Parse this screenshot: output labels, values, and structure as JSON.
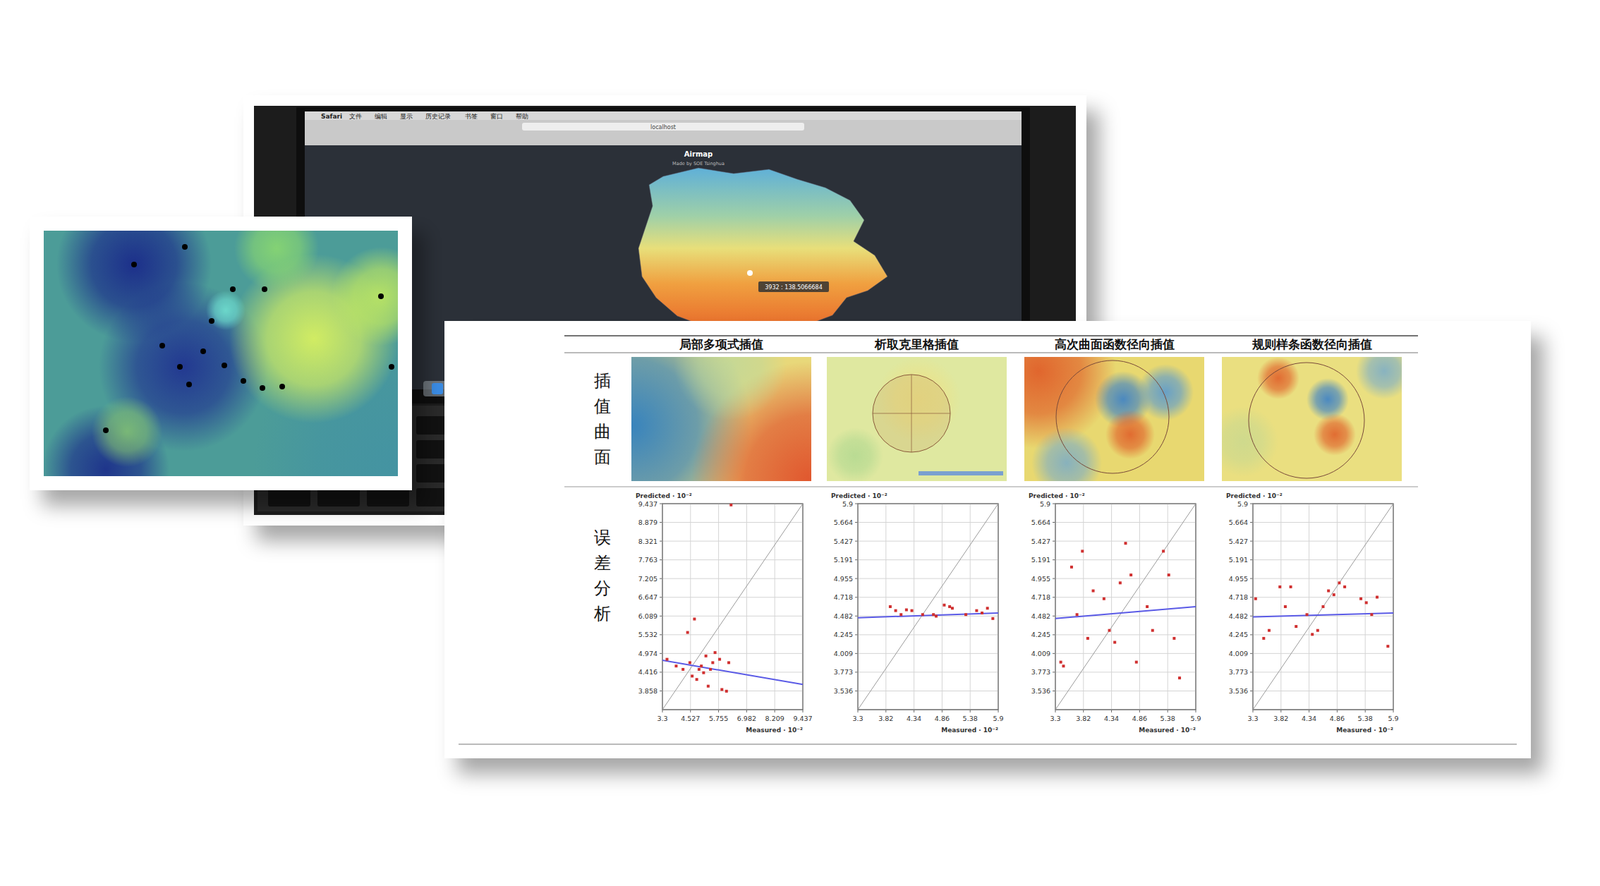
{
  "screenshot": {
    "menu": [
      "Safari",
      "文件",
      "编辑",
      "显示",
      "历史记录",
      "书签",
      "窗口",
      "帮助"
    ],
    "url": "localhost",
    "title": "Airmap",
    "subtitle": "Made by SOE Tsinghua",
    "tooltip": "3932 : 138.5066684"
  },
  "document": {
    "row_labels": [
      "插值曲面",
      "误差分析"
    ]
  },
  "chart_data": [
    {
      "type": "scatter",
      "title": "局部多项式插值",
      "x_label": "Measured · 10⁻²",
      "y_label": "Predicted · 10⁻²",
      "color": "#d03030",
      "marker": "square",
      "grid": true,
      "x": [
        3.5,
        3.9,
        4.2,
        4.5,
        4.6,
        4.8,
        4.9,
        5.0,
        5.1,
        5.2,
        5.3,
        5.4,
        5.5,
        5.6,
        5.8,
        6.2,
        5.9,
        6.1,
        4.7,
        4.4,
        6.3
      ],
      "values": [
        4.8,
        4.6,
        4.5,
        4.7,
        4.3,
        4.2,
        4.5,
        4.6,
        4.4,
        4.9,
        4.0,
        4.5,
        4.7,
        5.0,
        4.8,
        4.7,
        3.9,
        3.85,
        6.0,
        5.6,
        9.4
      ],
      "xlim": [
        3.3,
        9.437
      ],
      "ylim": [
        3.3,
        9.437
      ],
      "xticks": [
        3.3,
        4.527,
        5.755,
        6.982,
        8.209,
        9.437
      ],
      "yticks": [
        3.858,
        4.416,
        4.974,
        5.532,
        6.089,
        6.647,
        7.205,
        7.763,
        8.321,
        8.879,
        9.437
      ],
      "fit": {
        "x": [
          3.3,
          9.437
        ],
        "values": [
          4.77,
          4.05
        ],
        "color": "#5a5ae6"
      },
      "reference_line": {
        "x": [
          3.3,
          9.437
        ],
        "values": [
          3.3,
          9.437
        ],
        "color": "#9a9a9a"
      }
    },
    {
      "type": "scatter",
      "title": "析取克里格插值",
      "x_label": "Measured · 10⁻²",
      "y_label": "Predicted · 10⁻²",
      "color": "#d03030",
      "marker": "square",
      "grid": true,
      "x": [
        3.9,
        4.0,
        4.1,
        4.2,
        4.3,
        4.5,
        4.7,
        4.9,
        5.0,
        5.05,
        5.3,
        5.5,
        5.6,
        5.7,
        5.8,
        4.75
      ],
      "values": [
        4.6,
        4.55,
        4.5,
        4.56,
        4.55,
        4.5,
        4.5,
        4.62,
        4.6,
        4.58,
        4.5,
        4.55,
        4.52,
        4.58,
        4.45,
        4.48
      ],
      "xlim": [
        3.3,
        5.9
      ],
      "ylim": [
        3.3,
        5.9
      ],
      "xticks": [
        3.3,
        3.82,
        4.34,
        4.86,
        5.38,
        5.9
      ],
      "yticks": [
        3.536,
        3.773,
        4.009,
        4.245,
        4.482,
        4.718,
        4.955,
        5.191,
        5.427,
        5.664,
        5.9
      ],
      "fit": {
        "x": [
          3.3,
          5.9
        ],
        "values": [
          4.46,
          4.52
        ],
        "color": "#5a5ae6"
      },
      "reference_line": {
        "x": [
          3.3,
          5.9
        ],
        "values": [
          3.3,
          5.9
        ],
        "color": "#9a9a9a"
      }
    },
    {
      "type": "scatter",
      "title": "高次曲面函数径向插值",
      "x_label": "Measured · 10⁻²",
      "y_label": "Predicted · 10⁻²",
      "color": "#d03030",
      "marker": "square",
      "grid": true,
      "x": [
        3.4,
        3.45,
        3.6,
        3.7,
        3.8,
        3.9,
        4.0,
        4.3,
        4.4,
        4.5,
        4.6,
        4.7,
        4.8,
        5.0,
        5.1,
        5.3,
        5.4,
        5.5,
        5.6,
        4.2
      ],
      "values": [
        3.9,
        3.85,
        5.1,
        4.5,
        5.3,
        4.2,
        4.8,
        4.3,
        4.15,
        4.9,
        5.4,
        5.0,
        3.9,
        4.6,
        4.3,
        5.3,
        5.0,
        4.2,
        3.7,
        4.7
      ],
      "xlim": [
        3.3,
        5.9
      ],
      "ylim": [
        3.3,
        5.9
      ],
      "xticks": [
        3.3,
        3.82,
        4.34,
        4.86,
        5.38,
        5.9
      ],
      "yticks": [
        3.536,
        3.773,
        4.009,
        4.245,
        4.482,
        4.718,
        4.955,
        5.191,
        5.427,
        5.664,
        5.9
      ],
      "fit": {
        "x": [
          3.3,
          5.9
        ],
        "values": [
          4.45,
          4.6
        ],
        "color": "#5a5ae6"
      },
      "reference_line": {
        "x": [
          3.3,
          5.9
        ],
        "values": [
          3.3,
          5.9
        ],
        "color": "#9a9a9a"
      }
    },
    {
      "type": "scatter",
      "title": "规则样条函数径向插值",
      "x_label": "Measured · 10⁻²",
      "y_label": "Predicted · 10⁻²",
      "color": "#d03030",
      "marker": "square",
      "grid": true,
      "x": [
        3.35,
        3.5,
        3.6,
        3.8,
        3.9,
        4.0,
        4.1,
        4.3,
        4.4,
        4.5,
        4.7,
        4.8,
        4.9,
        5.0,
        5.3,
        5.4,
        5.5,
        5.8,
        4.6,
        5.6
      ],
      "values": [
        4.7,
        4.2,
        4.3,
        4.85,
        4.6,
        4.85,
        4.35,
        4.5,
        4.25,
        4.3,
        4.8,
        4.75,
        4.9,
        4.85,
        4.7,
        4.65,
        4.5,
        4.1,
        4.6,
        4.72
      ],
      "xlim": [
        3.3,
        5.9
      ],
      "ylim": [
        3.3,
        5.9
      ],
      "xticks": [
        3.3,
        3.82,
        4.34,
        4.86,
        5.38,
        5.9
      ],
      "yticks": [
        3.536,
        3.773,
        4.009,
        4.245,
        4.482,
        4.718,
        4.955,
        5.191,
        5.427,
        5.664,
        5.9
      ],
      "fit": {
        "x": [
          3.3,
          5.9
        ],
        "values": [
          4.47,
          4.52
        ],
        "color": "#5a5ae6"
      },
      "reference_line": {
        "x": [
          3.3,
          5.9
        ],
        "values": [
          3.3,
          5.9
        ],
        "color": "#9a9a9a"
      }
    }
  ]
}
